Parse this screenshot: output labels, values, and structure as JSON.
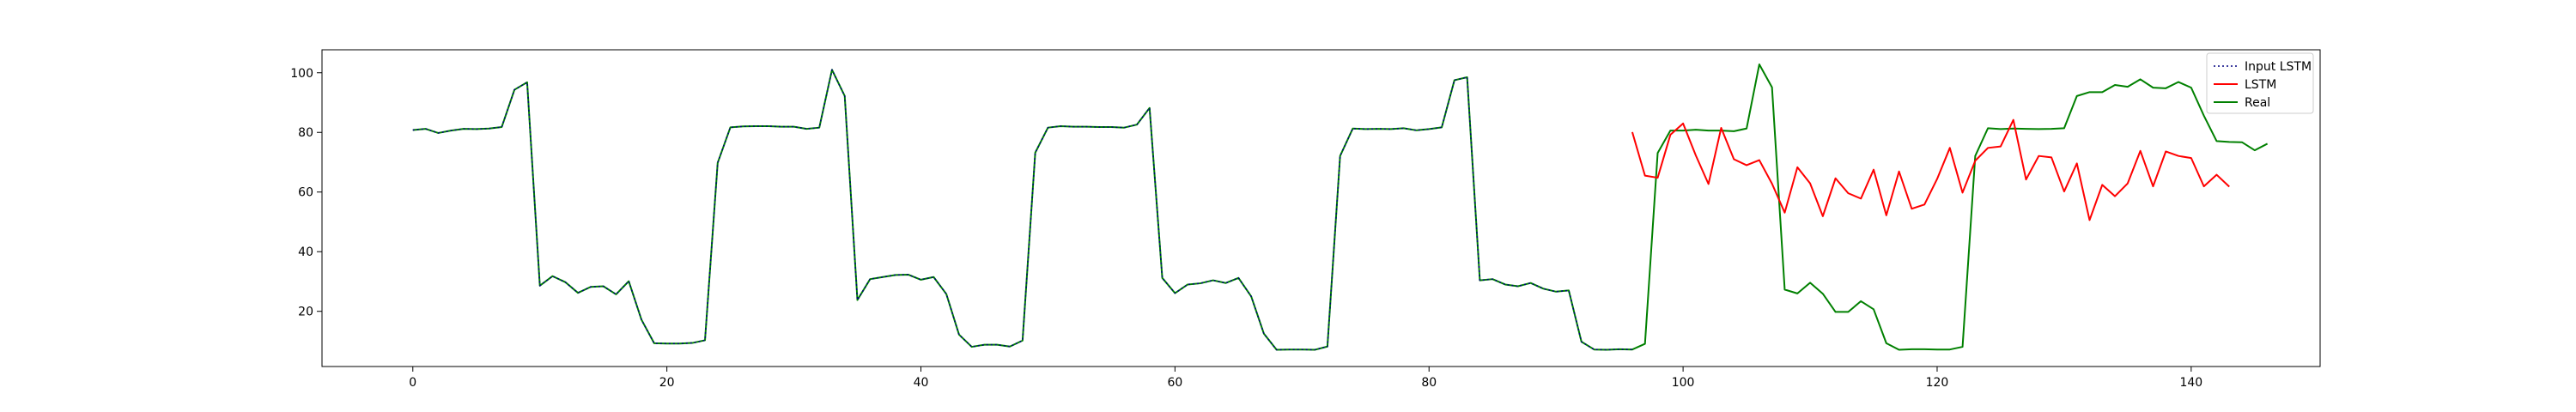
{
  "chart_data": {
    "type": "line",
    "title": "",
    "xlabel": "",
    "ylabel": "",
    "xlim": [
      -7.15,
      150.15
    ],
    "ylim": [
      1.5,
      107.7
    ],
    "x_ticks": [
      0,
      20,
      40,
      60,
      80,
      100,
      120,
      140
    ],
    "y_ticks": [
      20,
      40,
      60,
      80,
      100
    ],
    "grid": false,
    "legend_position": "top-right",
    "series": [
      {
        "name": "Input LSTM",
        "color": "#000080",
        "style": "dotted",
        "x_start": 0,
        "values": [
          80.8,
          81.2,
          79.8,
          80.6,
          81.2,
          81.1,
          81.3,
          81.8,
          94.3,
          96.8,
          28.6,
          31.8,
          29.8,
          26.2,
          28.2,
          28.4,
          25.7,
          30.1,
          17.2,
          9.3,
          9.2,
          9.2,
          9.4,
          10.3,
          69.8,
          81.7,
          82.0,
          82.1,
          82.1,
          81.9,
          81.9,
          81.2,
          81.6,
          101.0,
          92.2,
          23.8,
          30.8,
          31.5,
          32.2,
          32.3,
          30.6,
          31.5,
          25.8,
          12.2,
          8.1,
          8.8,
          8.8,
          8.2,
          10.2,
          73.2,
          81.6,
          82.1,
          81.9,
          81.9,
          81.8,
          81.8,
          81.6,
          82.6,
          88.2,
          31.2,
          26.1,
          29.0,
          29.4,
          30.4,
          29.5,
          31.2,
          25.0,
          12.5,
          7.1,
          7.2,
          7.2,
          7.1,
          8.2,
          72.1,
          81.3,
          81.1,
          81.2,
          81.1,
          81.4,
          80.7,
          81.1,
          81.7,
          97.5,
          98.5,
          30.4,
          30.8,
          29.0,
          28.4,
          29.5,
          27.6,
          26.6,
          27.0,
          9.8,
          7.2,
          7.1,
          7.3,
          7.2
        ]
      },
      {
        "name": "LSTM",
        "color": "#ff0000",
        "style": "solid",
        "x_start": 96,
        "values": [
          80.1,
          65.5,
          64.8,
          79.2,
          83.0,
          72.3,
          62.7,
          81.5,
          71.0,
          69.0,
          70.7,
          62.8,
          53.1,
          68.3,
          62.9,
          51.9,
          64.6,
          59.6,
          57.8,
          67.5,
          52.2,
          66.9,
          54.4,
          55.8,
          64.4,
          74.8,
          59.8,
          70.5,
          74.8,
          75.3,
          84.2,
          64.2,
          72.1,
          71.6,
          60.2,
          69.6,
          50.6,
          62.4,
          58.6,
          62.9,
          73.8,
          61.9,
          73.6,
          72.1,
          71.4,
          61.9,
          65.8,
          61.8
        ]
      },
      {
        "name": "Real",
        "color": "#008000",
        "style": "solid",
        "x_start": 0,
        "values": [
          80.8,
          81.2,
          79.8,
          80.6,
          81.2,
          81.1,
          81.3,
          81.8,
          94.3,
          96.8,
          28.6,
          31.8,
          29.8,
          26.2,
          28.2,
          28.4,
          25.7,
          30.1,
          17.2,
          9.3,
          9.2,
          9.2,
          9.4,
          10.3,
          69.8,
          81.7,
          82.0,
          82.1,
          82.1,
          81.9,
          81.9,
          81.2,
          81.6,
          101.0,
          92.2,
          23.8,
          30.8,
          31.5,
          32.2,
          32.3,
          30.6,
          31.5,
          25.8,
          12.2,
          8.1,
          8.8,
          8.8,
          8.2,
          10.2,
          73.2,
          81.6,
          82.1,
          81.9,
          81.9,
          81.8,
          81.8,
          81.6,
          82.6,
          88.2,
          31.2,
          26.1,
          29.0,
          29.4,
          30.4,
          29.5,
          31.2,
          25.0,
          12.5,
          7.1,
          7.2,
          7.2,
          7.1,
          8.2,
          72.1,
          81.3,
          81.1,
          81.2,
          81.1,
          81.4,
          80.7,
          81.1,
          81.7,
          97.5,
          98.5,
          30.4,
          30.8,
          29.0,
          28.4,
          29.5,
          27.6,
          26.6,
          27.0,
          9.8,
          7.2,
          7.1,
          7.3,
          7.2,
          9.1,
          73.1,
          80.6,
          80.6,
          80.9,
          80.6,
          80.6,
          80.4,
          81.3,
          102.8,
          95.1,
          27.3,
          26.0,
          29.6,
          25.9,
          19.8,
          19.8,
          23.4,
          20.7,
          9.3,
          7.1,
          7.3,
          7.3,
          7.2,
          7.2,
          8.1,
          72.1,
          81.4,
          81.1,
          81.3,
          81.2,
          81.1,
          81.2,
          81.4,
          92.2,
          93.5,
          93.5,
          95.9,
          95.3,
          97.8,
          95.0,
          94.8,
          96.9,
          95.0,
          85.6,
          77.1,
          76.8,
          76.7,
          74.0,
          76.2
        ]
      }
    ]
  }
}
